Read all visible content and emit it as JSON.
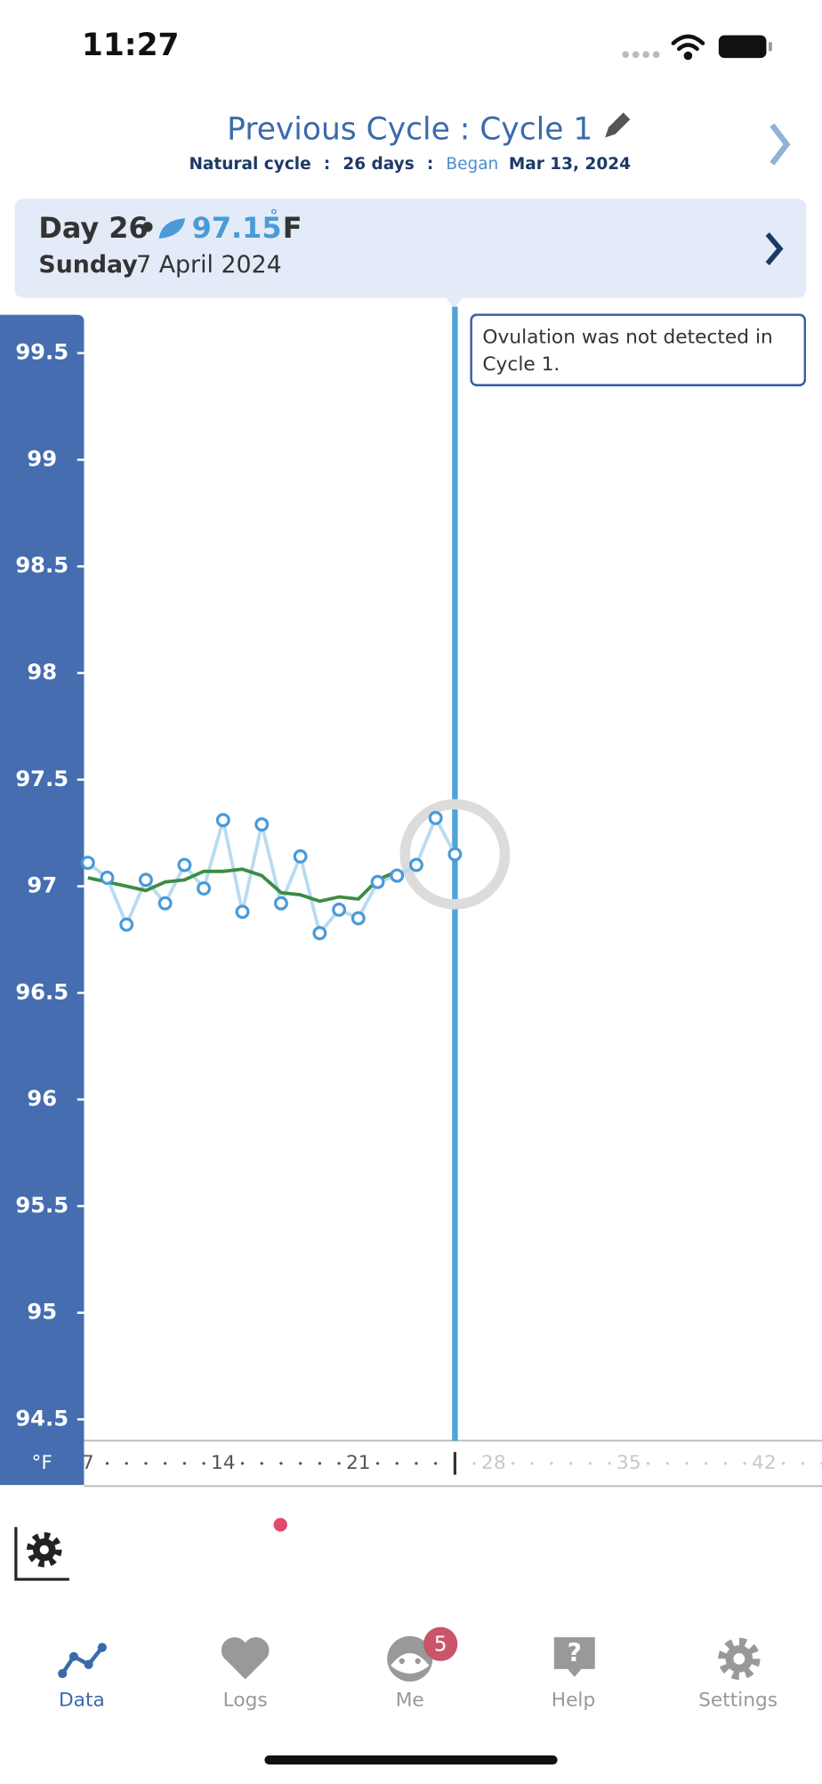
{
  "status": {
    "time": "11:27"
  },
  "header": {
    "title": "Previous Cycle : Cycle 1",
    "cycle_type": "Natural cycle",
    "separator": ":",
    "length": "26 days",
    "began_label": "Began",
    "began_date": "Mar 13, 2024"
  },
  "card": {
    "day": "Day 26",
    "bullet": "•",
    "degree": "˚",
    "unit": "F",
    "weekday": "Sunday",
    "date": "7 April 2024"
  },
  "annotation": "Ovulation was not detected in Cycle 1.",
  "chart_data": {
    "type": "line",
    "y_label": "°F",
    "x": [
      7,
      8,
      9,
      10,
      11,
      12,
      13,
      14,
      15,
      16,
      17,
      18,
      19,
      20,
      21,
      22,
      23,
      24,
      25,
      26
    ],
    "series": [
      {
        "color": "#4a9ad8",
        "line_color": "#b9dbf1",
        "values": [
          97.11,
          97.04,
          96.82,
          97.03,
          96.92,
          97.1,
          96.99,
          97.31,
          96.88,
          97.29,
          96.92,
          97.14,
          96.78,
          96.89,
          96.85,
          97.02,
          97.05,
          97.1,
          97.32,
          97.15
        ]
      },
      {
        "color": "#3c8c44",
        "values": [
          97.04,
          97.02,
          97.0,
          96.98,
          97.02,
          97.03,
          97.07,
          97.07,
          97.08,
          97.05,
          96.97,
          96.96,
          96.93,
          96.95,
          96.94,
          97.03,
          97.07,
          null,
          null,
          null
        ]
      }
    ],
    "xlim": [
      6.8,
      45
    ],
    "xticks": [
      7,
      14,
      21,
      28,
      35,
      42
    ],
    "ylim": [
      94.4,
      99.68
    ],
    "yticks": [
      94.5,
      95,
      95.5,
      96,
      96.5,
      97,
      97.5,
      98,
      98.5,
      99,
      99.5
    ]
  },
  "tabs": [
    {
      "label": "Data"
    },
    {
      "label": "Logs"
    },
    {
      "label": "Me",
      "badge": 5
    },
    {
      "label": "Help"
    },
    {
      "label": "Settings"
    }
  ]
}
